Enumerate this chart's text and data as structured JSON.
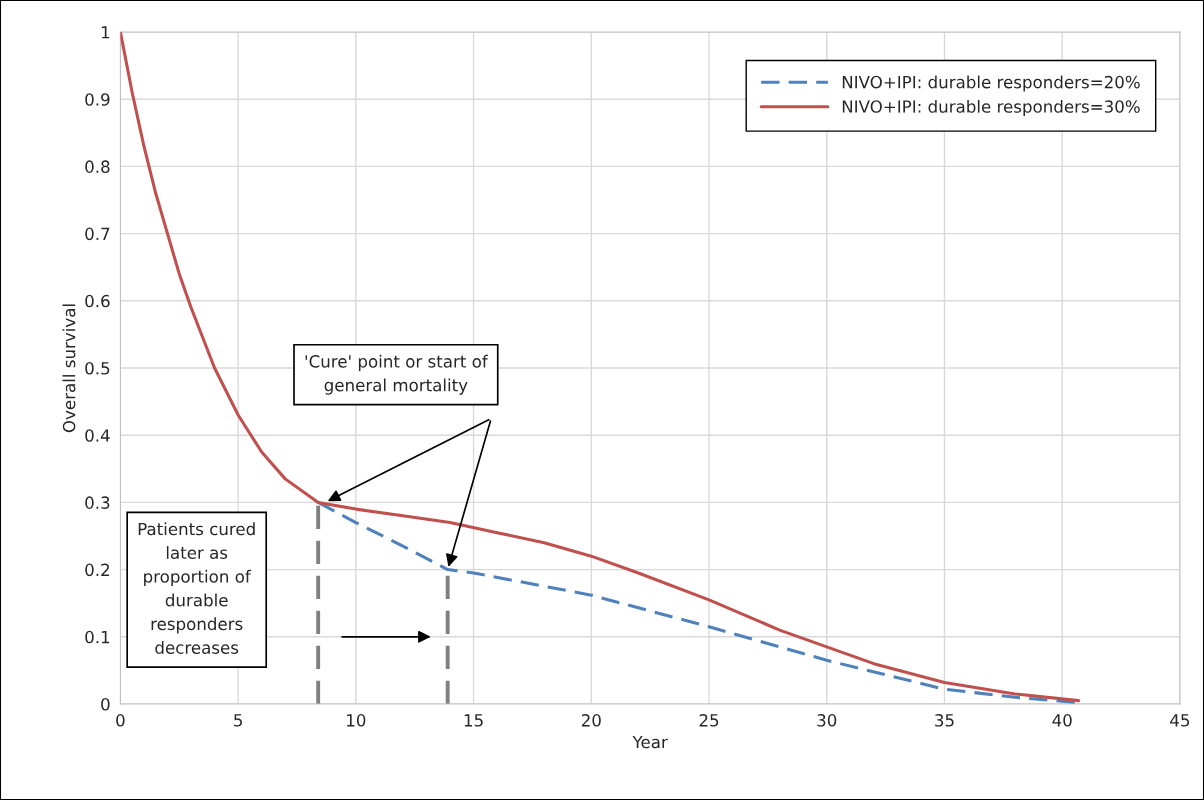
{
  "chart_data": {
    "type": "line",
    "xlabel": "Year",
    "ylabel": "Overall survival",
    "xlim": [
      0,
      45
    ],
    "xticks": [
      0,
      5,
      10,
      15,
      20,
      25,
      30,
      35,
      40,
      45
    ],
    "ylim": [
      0,
      1
    ],
    "yticks": [
      0,
      0.1,
      0.2,
      0.3,
      0.4,
      0.5,
      0.6,
      0.7,
      0.8,
      0.9,
      1
    ],
    "grid": true,
    "legend": "top right",
    "marker": "none",
    "series": [
      {
        "name": "NIVO+IPI: durable responders=20%",
        "color": "#4f81bd",
        "line_style": "dashed",
        "x": [
          8.4,
          10,
          12,
          13.9,
          15,
          20,
          25,
          30,
          35,
          38,
          40.7
        ],
        "values": [
          0.3,
          0.27,
          0.235,
          0.2,
          0.195,
          0.162,
          0.115,
          0.065,
          0.022,
          0.01,
          0.002
        ]
      },
      {
        "name": "NIVO+IPI: durable responders=30%",
        "color": "#c0504d",
        "line_style": "solid",
        "x": [
          0,
          0.5,
          1,
          1.5,
          2,
          2.5,
          3,
          4,
          5,
          6,
          7,
          8,
          8.4,
          10,
          12,
          14,
          16,
          18,
          20,
          22,
          25,
          28,
          30,
          32,
          35,
          38,
          40.7
        ],
        "values": [
          1,
          0.91,
          0.83,
          0.76,
          0.7,
          0.64,
          0.59,
          0.5,
          0.43,
          0.375,
          0.335,
          0.31,
          0.3,
          0.29,
          0.28,
          0.27,
          0.255,
          0.24,
          0.22,
          0.195,
          0.155,
          0.11,
          0.085,
          0.06,
          0.032,
          0.015,
          0.005
        ]
      },
      {
        "color": "#808080",
        "line_style": "dashed",
        "x": [
          8.4,
          8.4
        ],
        "values": [
          0,
          0.3
        ]
      },
      {
        "color": "#808080",
        "line_style": "dashed",
        "x": [
          13.9,
          13.9
        ],
        "values": [
          0,
          0.2
        ]
      }
    ],
    "annotations": [
      "'Cure' point or start of\ngeneral mortality",
      "Patients cured\nlater as\nproportion of\ndurable\nresponders\ndecreases"
    ]
  }
}
